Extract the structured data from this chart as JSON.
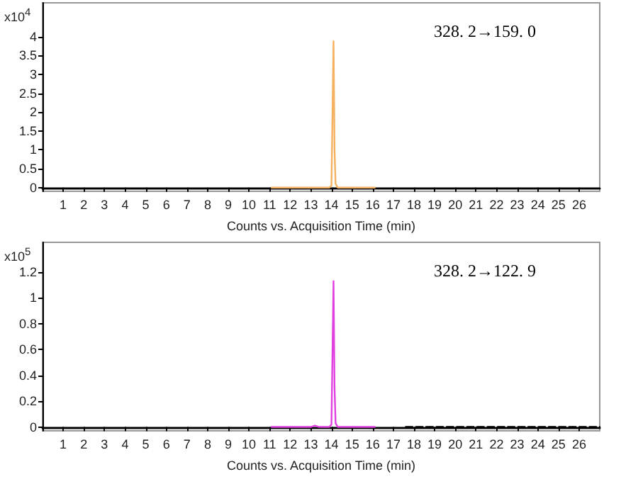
{
  "chart_data": [
    {
      "type": "line",
      "ylabel": "x10$^{4}$",
      "xlabel": "Counts vs. Acquisition Time (min)",
      "annotations": [
        "328. 2→159. 0"
      ],
      "marker": "none",
      "line_style": "solid",
      "xlim": [
        0,
        27
      ],
      "xticks": [
        1,
        2,
        3,
        4,
        5,
        6,
        7,
        8,
        9,
        10,
        11,
        12,
        13,
        14,
        15,
        16,
        17,
        18,
        19,
        20,
        21,
        22,
        23,
        24,
        25,
        26
      ],
      "ylim": [
        -0.1,
        4.9
      ],
      "yticks": [
        0,
        0.5,
        1,
        1.5,
        2,
        2.5,
        3,
        3.5,
        4
      ],
      "series": [
        {
          "color": "#f5b060",
          "x": [
            11.1,
            13.9,
            14.0,
            14.1,
            14.15,
            14.2,
            14.3,
            16.1
          ],
          "values": [
            0,
            0,
            0.05,
            3.88,
            1.0,
            0.1,
            0,
            0
          ]
        }
      ]
    },
    {
      "type": "line",
      "ylabel": "x10$^{5}$",
      "xlabel": "Counts vs. Acquisition Time (min)",
      "annotations": [
        "328. 2→122. 9"
      ],
      "marker": "none",
      "line_style": "solid",
      "xlim": [
        0,
        27
      ],
      "xticks": [
        1,
        2,
        3,
        4,
        5,
        6,
        7,
        8,
        9,
        10,
        11,
        12,
        13,
        14,
        15,
        16,
        17,
        18,
        19,
        20,
        21,
        22,
        23,
        24,
        25,
        26
      ],
      "ylim": [
        -0.03,
        1.43
      ],
      "yticks": [
        0,
        0.2,
        0.4,
        0.6,
        0.8,
        1,
        1.2
      ],
      "series": [
        {
          "color": "#e040e0",
          "x": [
            11.1,
            13.0,
            13.2,
            13.4,
            13.9,
            14.0,
            14.1,
            14.15,
            14.2,
            14.3,
            16.1
          ],
          "values": [
            0,
            0,
            0.01,
            0,
            0,
            0.02,
            1.13,
            0.3,
            0.03,
            0,
            0
          ]
        },
        {
          "color": "#000000",
          "line_style": "dashed",
          "x": [
            17.6,
            27
          ],
          "values": [
            0,
            0
          ]
        }
      ]
    }
  ]
}
